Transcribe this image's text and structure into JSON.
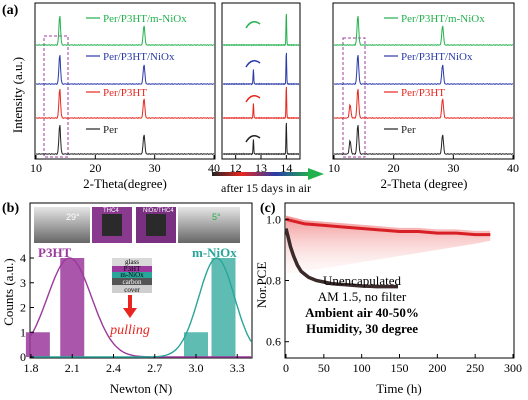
{
  "colors": {
    "green": "#22b14c",
    "blue": "#2a3aa8",
    "red": "#e8261f",
    "black": "#222222",
    "magenta": "#9b3a9c",
    "teal": "#2aa59a",
    "arrow_mid": "#7a2da0"
  },
  "panel_labels": {
    "a": "(a)",
    "b": "(b)",
    "c": "(c)"
  },
  "panel_a": {
    "left": {
      "xlabel": "2-Theta(degree)",
      "ylabel": "Intensity (a.u.)",
      "xticks": [
        "10",
        "20",
        "30",
        "40"
      ],
      "legend": [
        "Per/P3HT/m-NiOx",
        "Per/P3HT/NiOx",
        "Per/P3HT",
        "Per"
      ]
    },
    "zoom": {
      "xticks": [
        "12",
        "13",
        "14"
      ]
    },
    "right": {
      "xlabel": "2-Theta (degree)",
      "xticks": [
        "10",
        "20",
        "30",
        "40"
      ],
      "legend": [
        "Per/P3HT/m-NiOx",
        "Per/P3HT/NiOx",
        "Per/P3HT",
        "Per"
      ]
    },
    "arrow_text": "after 15 days in air"
  },
  "panel_b": {
    "xlabel": "Newton (N)",
    "ylabel": "Counts (a.u.)",
    "xticks": [
      "1.8",
      "2.1",
      "2.4",
      "2.7",
      "3.0",
      "3.3"
    ],
    "yticks": [
      "0",
      "1",
      "2",
      "3",
      "4"
    ],
    "label_p3ht": "P3HT",
    "label_mniox": "m-NiOx",
    "pulling": "pulling",
    "photo_labels": [
      "29°",
      "THC4",
      "NiOx/THC4",
      "5°"
    ],
    "stack_layers": [
      "glass",
      "P3HT",
      "m-NiOx",
      "carbon",
      "cover"
    ]
  },
  "panel_c": {
    "xlabel": "Time (h)",
    "ylabel": "Nor.PCE",
    "xticks": [
      "0",
      "50",
      "100",
      "150",
      "200",
      "250",
      "300"
    ],
    "yticks": [
      "0.6",
      "0.8",
      "1.0"
    ],
    "note": [
      "Unencapulated",
      "AM 1.5, no filter",
      "Ambient air 40-50%",
      "Humidity, 30 degree"
    ]
  },
  "chart_data": [
    {
      "type": "line",
      "panel": "a-left",
      "xlabel": "2-Theta(degree)",
      "ylabel": "Intensity (a.u.)",
      "xlim": [
        10,
        40
      ],
      "series": [
        {
          "name": "Per/P3HT/m-NiOx",
          "peaks": [
            14.0,
            28.2
          ]
        },
        {
          "name": "Per/P3HT/NiOx",
          "peaks": [
            14.0,
            28.2
          ]
        },
        {
          "name": "Per/P3HT",
          "peaks": [
            14.0,
            28.2
          ]
        },
        {
          "name": "Per",
          "peaks": [
            14.0,
            28.2
          ]
        }
      ]
    },
    {
      "type": "line",
      "panel": "a-zoom",
      "xlim": [
        11.5,
        14.5
      ],
      "series": [
        {
          "name": "Per/P3HT/m-NiOx",
          "peaks": [
            14.0
          ]
        },
        {
          "name": "Per/P3HT/NiOx",
          "peaks": [
            12.7,
            14.0
          ]
        },
        {
          "name": "Per/P3HT",
          "peaks": [
            12.7,
            14.0
          ]
        },
        {
          "name": "Per",
          "peaks": [
            12.7,
            14.0
          ]
        }
      ]
    },
    {
      "type": "line",
      "panel": "a-right",
      "xlabel": "2-Theta (degree)",
      "xlim": [
        10,
        40
      ],
      "series": [
        {
          "name": "Per/P3HT/m-NiOx",
          "peaks": [
            14.0,
            28.2
          ]
        },
        {
          "name": "Per/P3HT/NiOx",
          "peaks": [
            14.0,
            28.2
          ]
        },
        {
          "name": "Per/P3HT",
          "peaks": [
            12.7,
            14.0,
            28.2
          ]
        },
        {
          "name": "Per",
          "peaks": [
            12.7,
            14.0,
            28.2
          ]
        }
      ]
    },
    {
      "type": "bar",
      "panel": "b",
      "xlabel": "Newton (N)",
      "ylabel": "Counts (a.u.)",
      "xlim": [
        1.8,
        3.4
      ],
      "ylim": [
        0,
        4
      ],
      "series": [
        {
          "name": "P3HT",
          "x": [
            1.85,
            2.1
          ],
          "values": [
            1,
            4
          ]
        },
        {
          "name": "m-NiOx",
          "x": [
            3.0,
            3.2
          ],
          "values": [
            1,
            4
          ]
        }
      ]
    },
    {
      "type": "line",
      "panel": "c",
      "xlabel": "Time (h)",
      "ylabel": "Nor.PCE",
      "xlim": [
        0,
        300
      ],
      "ylim": [
        0.55,
        1.05
      ],
      "series": [
        {
          "name": "m-NiOx",
          "x": [
            0,
            25,
            50,
            75,
            100,
            125,
            150,
            175,
            200,
            225,
            250,
            270
          ],
          "y": [
            1.0,
            0.985,
            0.98,
            0.975,
            0.97,
            0.965,
            0.96,
            0.96,
            0.955,
            0.955,
            0.95,
            0.95
          ]
        },
        {
          "name": "P3HT",
          "x": [
            0,
            3,
            6,
            10,
            15,
            20,
            25,
            30,
            40,
            50,
            60,
            70,
            80,
            90,
            100,
            110,
            120,
            130,
            140,
            148
          ],
          "y": [
            0.97,
            0.94,
            0.91,
            0.88,
            0.85,
            0.83,
            0.82,
            0.81,
            0.8,
            0.795,
            0.79,
            0.788,
            0.786,
            0.784,
            0.782,
            0.781,
            0.78,
            0.78,
            0.78,
            0.78
          ]
        }
      ]
    }
  ]
}
